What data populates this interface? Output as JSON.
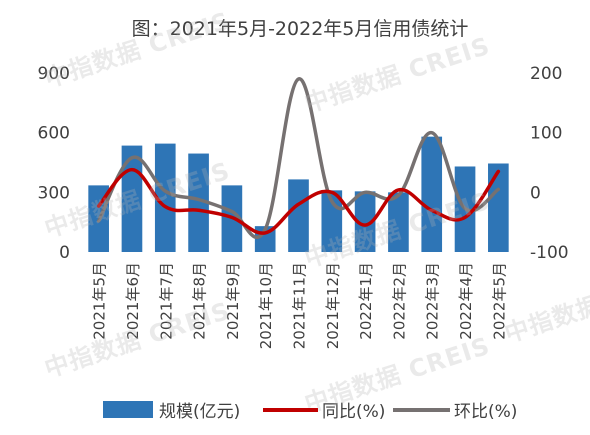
{
  "watermark": "中指数据 CREIS",
  "chart_data": {
    "type": "bar",
    "title": "图：2021年5月-2022年5月信用债统计",
    "categories": [
      "2021年5月",
      "2021年6月",
      "2021年7月",
      "2021年8月",
      "2021年9月",
      "2021年10月",
      "2021年11月",
      "2021年12月",
      "2022年1月",
      "2022年2月",
      "2022年3月",
      "2022年4月",
      "2022年5月"
    ],
    "series": [
      {
        "name": "规模(亿元)",
        "type": "bar",
        "axis": "left",
        "color": "#2E75B6",
        "values": [
          335,
          535,
          545,
          495,
          335,
          130,
          365,
          310,
          305,
          300,
          580,
          430,
          445
        ]
      },
      {
        "name": "同比(%)",
        "type": "line",
        "axis": "right",
        "color": "#C00000",
        "values": [
          -23,
          38,
          -24,
          -30,
          -42,
          -68,
          -20,
          0,
          -55,
          4,
          -30,
          -42,
          35
        ]
      },
      {
        "name": "环比(%)",
        "type": "line",
        "axis": "right",
        "color": "#767171",
        "values": [
          -48,
          58,
          2,
          -12,
          -32,
          -62,
          190,
          -15,
          0,
          -5,
          100,
          -27,
          5
        ]
      }
    ],
    "y_left": {
      "ticks": [
        "0",
        "300",
        "600",
        "900"
      ],
      "min": 0,
      "max": 900
    },
    "y_right": {
      "ticks": [
        "-100",
        "0",
        "100",
        "200"
      ],
      "min": -100,
      "max": 200
    },
    "grid": false,
    "legend": "bottom"
  }
}
